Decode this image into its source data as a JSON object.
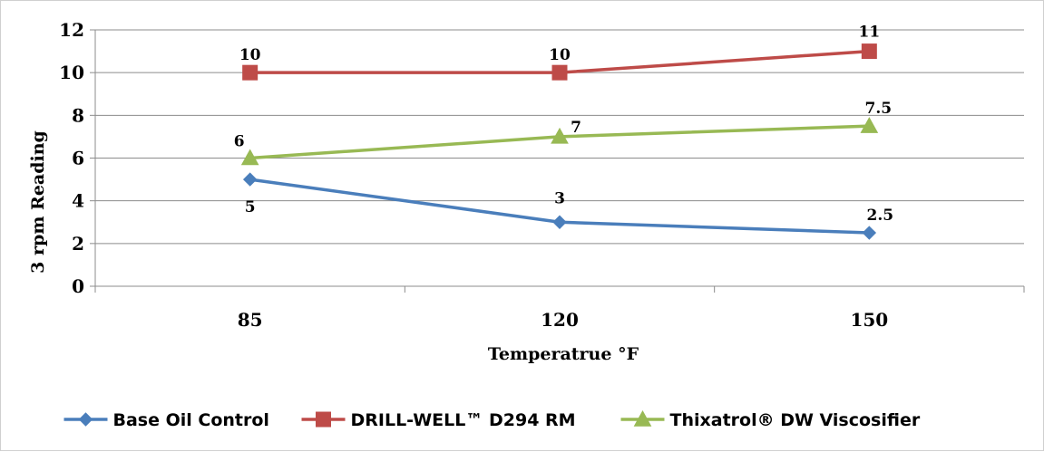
{
  "chart_data": {
    "type": "line",
    "title": "",
    "xlabel": "Temperatrue  °F",
    "ylabel": "3 rpm Reading",
    "categories": [
      "85",
      "120",
      "150"
    ],
    "ylim": [
      0,
      12
    ],
    "yticks": [
      "0",
      "2",
      "4",
      "6",
      "8",
      "10",
      "12"
    ],
    "grid": true,
    "legend_position": "bottom",
    "series": [
      {
        "name": "Base Oil Control",
        "values": [
          5,
          3,
          2.5
        ],
        "labels": [
          "5",
          "3",
          "2.5"
        ],
        "color": "#4a7ebb",
        "marker": "diamond"
      },
      {
        "name": "DRILL-WELL™ D294 RM",
        "values": [
          10,
          10,
          11
        ],
        "labels": [
          "10",
          "10",
          "11"
        ],
        "color": "#be4b48",
        "marker": "square"
      },
      {
        "name": "Thixatrol® DW Viscosifier",
        "values": [
          6,
          7,
          7.5
        ],
        "labels": [
          "6",
          "7",
          "7.5"
        ],
        "color": "#98b954",
        "marker": "triangle"
      }
    ]
  }
}
